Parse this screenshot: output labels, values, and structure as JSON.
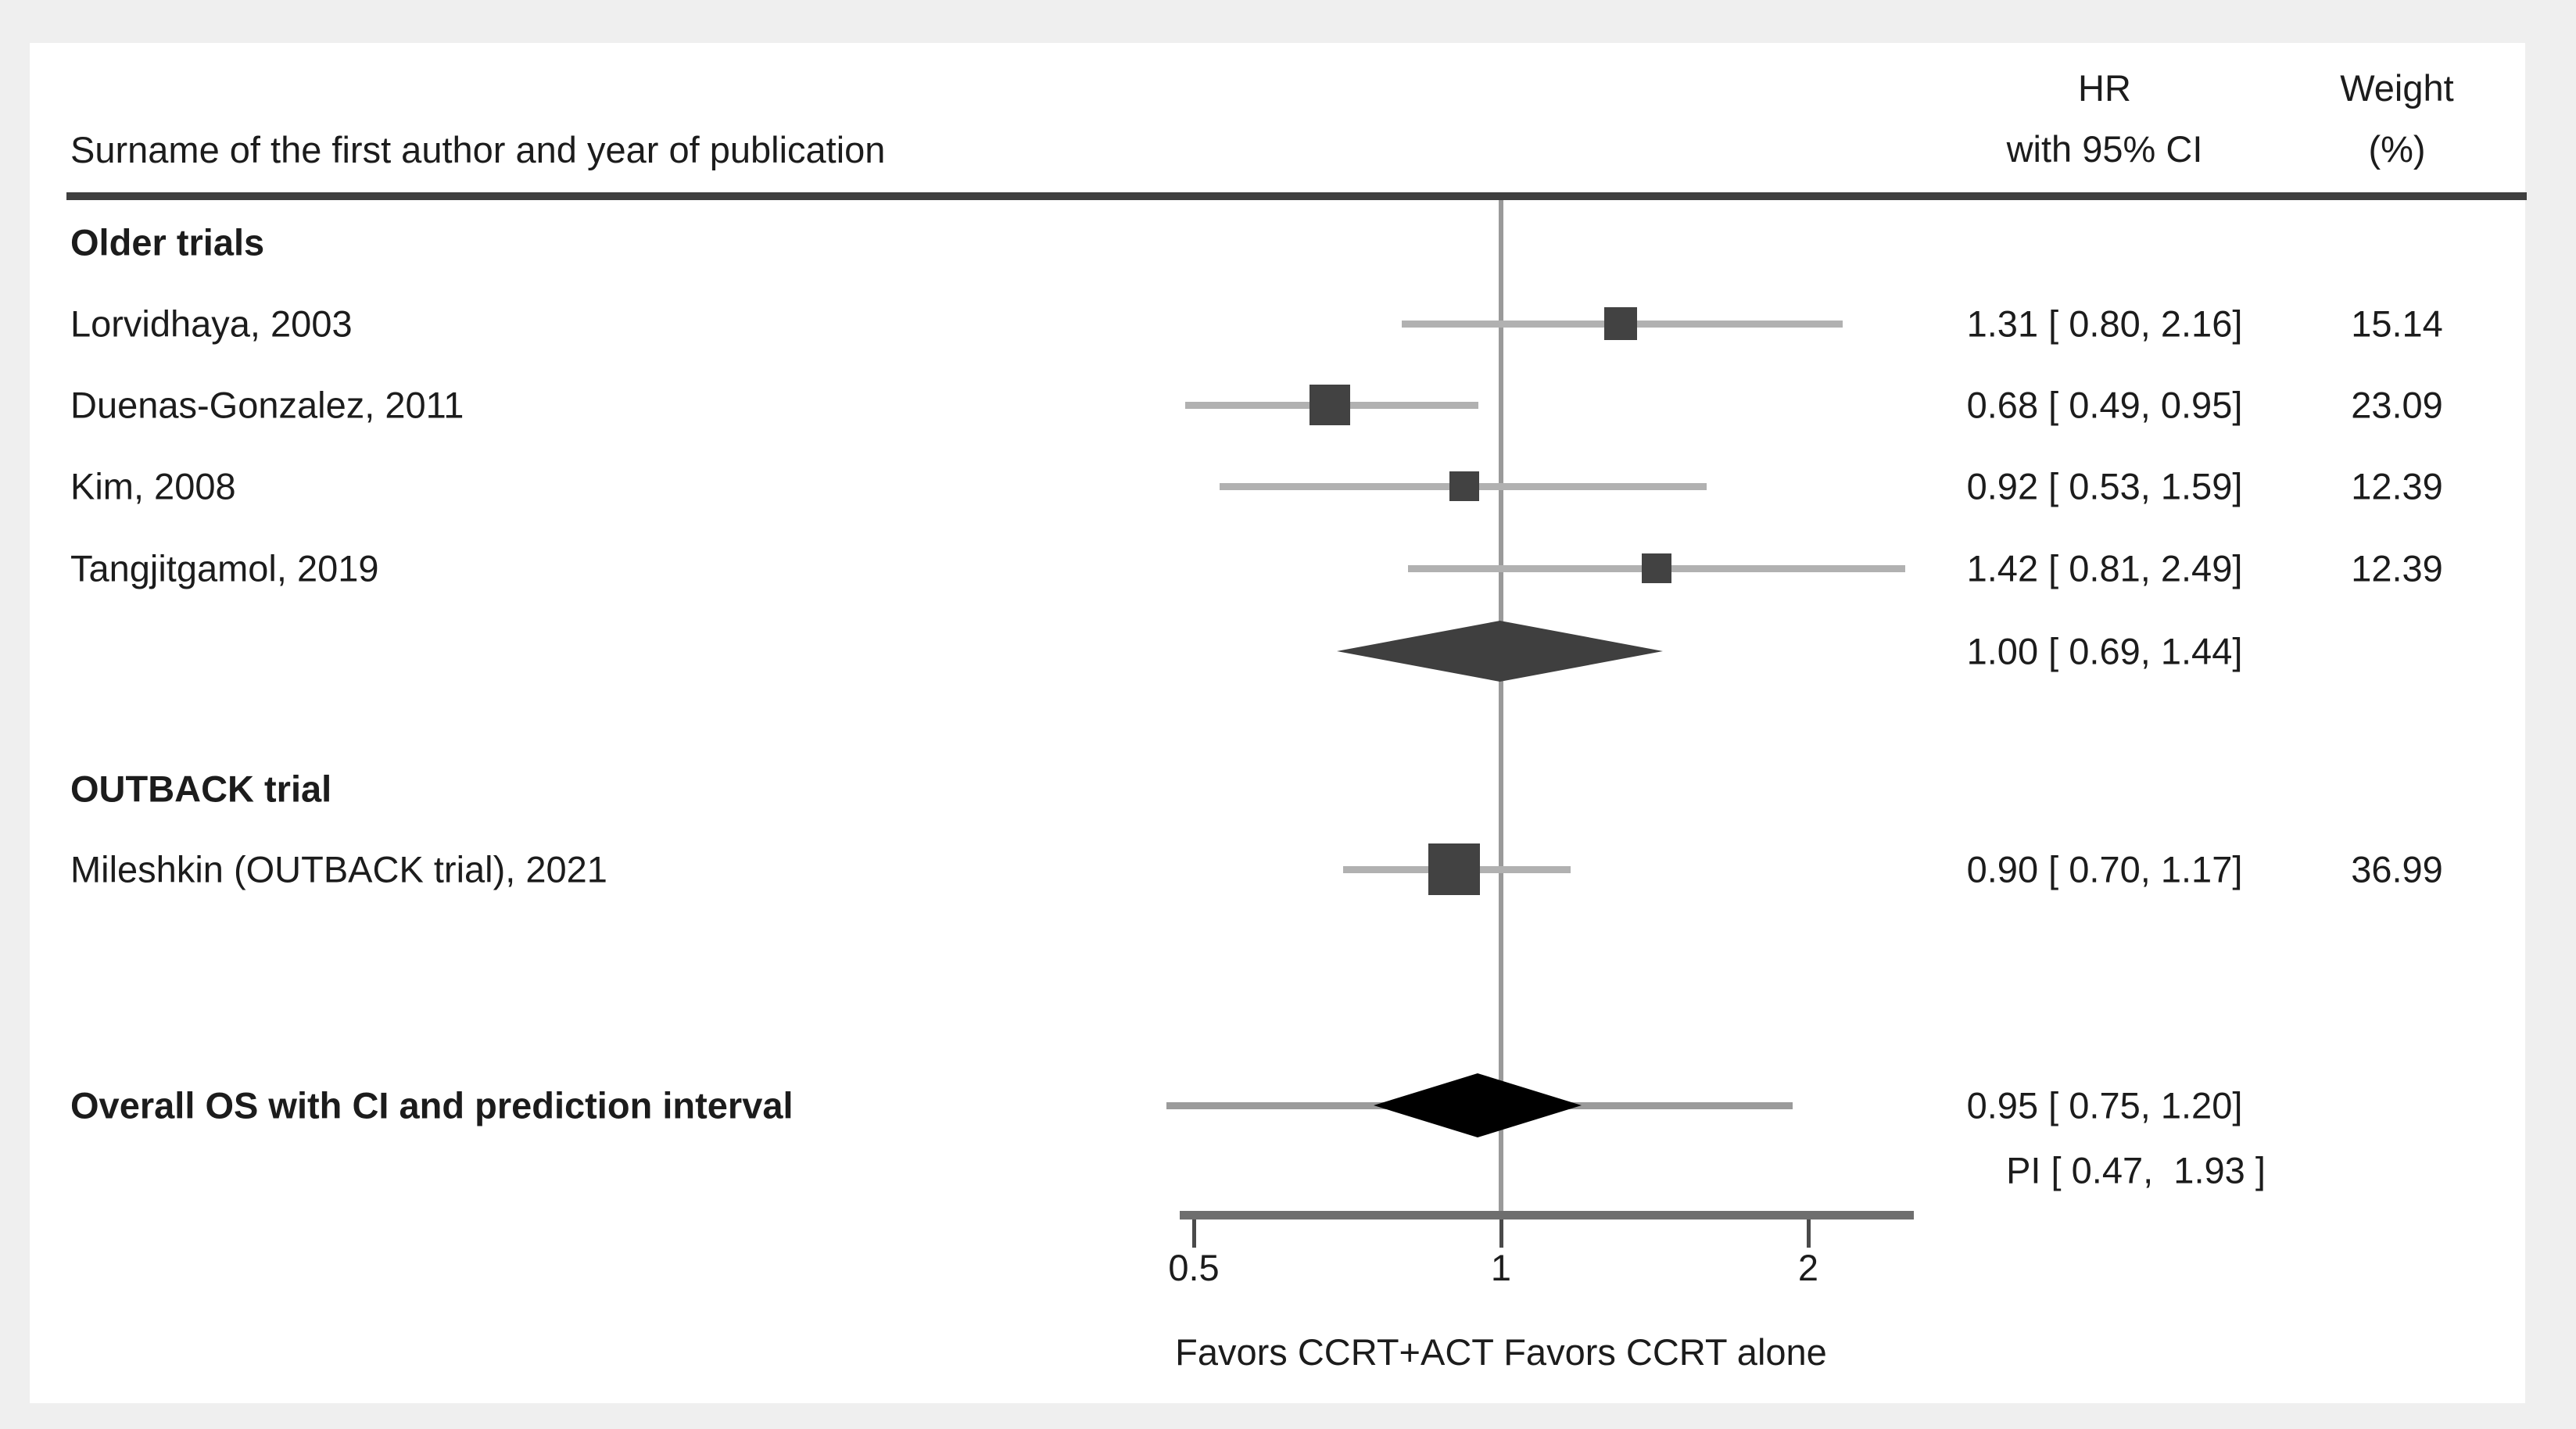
{
  "figure": {
    "left_header": "Surname of the first author and year of publication",
    "hr_header_line1": "HR",
    "hr_header_line2": "with 95% CI",
    "weight_header_line1": "Weight",
    "weight_header_line2": "(%)"
  },
  "chart_data": {
    "type": "forest",
    "effect_measure": "HR",
    "x_axis": {
      "scale": "log",
      "ticks": [
        "0.5",
        "1",
        "2"
      ],
      "reference_value": 1,
      "label_left": "Favors CCRT+ACT",
      "label_right": "Favors CCRT alone"
    },
    "groups": [
      {
        "name": "Older trials",
        "studies": [
          {
            "label": "Lorvidhaya, 2003",
            "hr": 1.31,
            "ci_low": 0.8,
            "ci_high": 2.16,
            "hr_text": "1.31 [ 0.80, 2.16]",
            "weight": 15.14,
            "weight_text": "15.14"
          },
          {
            "label": "Duenas-Gonzalez, 2011",
            "hr": 0.68,
            "ci_low": 0.49,
            "ci_high": 0.95,
            "hr_text": "0.68 [ 0.49, 0.95]",
            "weight": 23.09,
            "weight_text": "23.09"
          },
          {
            "label": "Kim, 2008",
            "hr": 0.92,
            "ci_low": 0.53,
            "ci_high": 1.59,
            "hr_text": "0.92 [ 0.53, 1.59]",
            "weight": 12.39,
            "weight_text": "12.39"
          },
          {
            "label": "Tangjitgamol, 2019",
            "hr": 1.42,
            "ci_low": 0.81,
            "ci_high": 2.49,
            "hr_text": "1.42 [ 0.81, 2.49]",
            "weight": 12.39,
            "weight_text": "12.39"
          }
        ],
        "subtotal": {
          "hr": 1.0,
          "ci_low": 0.69,
          "ci_high": 1.44,
          "hr_text": "1.00 [ 0.69, 1.44]"
        }
      },
      {
        "name": "OUTBACK trial",
        "studies": [
          {
            "label": "Mileshkin (OUTBACK trial), 2021",
            "hr": 0.9,
            "ci_low": 0.7,
            "ci_high": 1.17,
            "hr_text": "0.90 [ 0.70, 1.17]",
            "weight": 36.99,
            "weight_text": "36.99"
          }
        ]
      }
    ],
    "overall": {
      "label": "Overall OS with CI and prediction interval",
      "hr": 0.95,
      "ci_low": 0.75,
      "ci_high": 1.2,
      "hr_text": "0.95 [ 0.75, 1.20]",
      "pi_low": 0.47,
      "pi_high": 1.93,
      "pi_text": "PI [ 0.47,  1.93 ]"
    },
    "colors": {
      "study_square": "#424242",
      "subtotal_diamond": "#3f3f3f",
      "overall_diamond": "#000000",
      "ci_line": "#b1b1b1",
      "pi_line": "#9b9b9b",
      "reference_line": "#9a9a9a",
      "axis_line": "#6e6e6e",
      "header_rule": "#3f3f3f",
      "text": "#1c1c1c",
      "page_background": "#efefef",
      "figure_background": "#ffffff"
    }
  }
}
